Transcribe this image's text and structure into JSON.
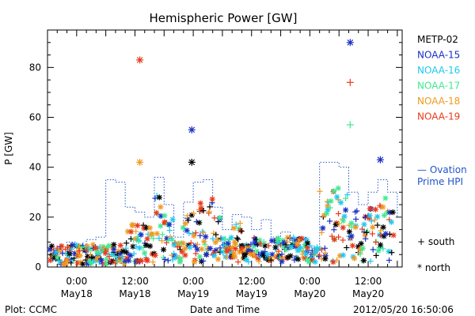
{
  "chart_data": {
    "type": "scatter",
    "title": "Hemispheric Power [GW]",
    "xlabel": "Date and Time",
    "ylabel": "P [GW]",
    "ylim": [
      0,
      95
    ],
    "xlim": [
      -6,
      67
    ],
    "x_unit": "hours from 2012/05/18 00:00",
    "x_ticks": [
      {
        "x": 0,
        "time": "0:00",
        "date": "May18"
      },
      {
        "x": 12,
        "time": "12:00",
        "date": "May18"
      },
      {
        "x": 24,
        "time": "0:00",
        "date": "May19"
      },
      {
        "x": 36,
        "time": "12:00",
        "date": "May19"
      },
      {
        "x": 48,
        "time": "0:00",
        "date": "May20"
      },
      {
        "x": 60,
        "time": "12:00",
        "date": "May20"
      }
    ],
    "y_ticks": [
      0,
      20,
      40,
      60,
      80
    ],
    "grid": false,
    "legend_position": "right",
    "series": [
      {
        "name": "METP-02",
        "color": "#000000"
      },
      {
        "name": "NOAA-15",
        "color": "#1a2fc8"
      },
      {
        "name": "NOAA-16",
        "color": "#20c8f0"
      },
      {
        "name": "NOAA-17",
        "color": "#40e890"
      },
      {
        "name": "NOAA-18",
        "color": "#f09a20"
      },
      {
        "name": "NOAA-19",
        "color": "#e83a1a"
      }
    ],
    "ovation": {
      "label_line1": "— Ovation",
      "label_line2": "Prime HPI",
      "color": "#2255cc",
      "steps": [
        [
          -6,
          7
        ],
        [
          -4,
          5
        ],
        [
          -2,
          10
        ],
        [
          0,
          8
        ],
        [
          2,
          11
        ],
        [
          4,
          12
        ],
        [
          6,
          35
        ],
        [
          8,
          34
        ],
        [
          10,
          24
        ],
        [
          12,
          22
        ],
        [
          14,
          20
        ],
        [
          16,
          36
        ],
        [
          18,
          25
        ],
        [
          20,
          12
        ],
        [
          22,
          26
        ],
        [
          24,
          34
        ],
        [
          26,
          35
        ],
        [
          28,
          24
        ],
        [
          30,
          15
        ],
        [
          32,
          21
        ],
        [
          34,
          20
        ],
        [
          36,
          15
        ],
        [
          38,
          19
        ],
        [
          40,
          12
        ],
        [
          42,
          14
        ],
        [
          44,
          11
        ],
        [
          46,
          9
        ],
        [
          48,
          8
        ],
        [
          50,
          42
        ],
        [
          52,
          42
        ],
        [
          54,
          40
        ],
        [
          56,
          30
        ],
        [
          58,
          25
        ],
        [
          60,
          30
        ],
        [
          62,
          35
        ],
        [
          64,
          30
        ],
        [
          66,
          20
        ]
      ]
    },
    "markers": {
      "south_label": "+ south",
      "north_label": "* north"
    },
    "notable_points": [
      {
        "series": "NOAA-19",
        "x": 13.0,
        "y": 83,
        "hemisphere": "north"
      },
      {
        "series": "NOAA-15",
        "x": 56.3,
        "y": 90,
        "hemisphere": "north"
      },
      {
        "series": "NOAA-19",
        "x": 56.3,
        "y": 74,
        "hemisphere": "south"
      },
      {
        "series": "NOAA-17",
        "x": 56.3,
        "y": 57,
        "hemisphere": "south"
      },
      {
        "series": "NOAA-15",
        "x": 23.7,
        "y": 55,
        "hemisphere": "north"
      },
      {
        "series": "METP-02",
        "x": 23.7,
        "y": 42,
        "hemisphere": "north"
      },
      {
        "series": "NOAA-18",
        "x": 13.0,
        "y": 42,
        "hemisphere": "north"
      },
      {
        "series": "NOAA-15",
        "x": 62.5,
        "y": 43,
        "hemisphere": "north"
      }
    ]
  },
  "footer": {
    "left": "Plot: CCMC",
    "right": "2012/05/20 16:50:06"
  }
}
